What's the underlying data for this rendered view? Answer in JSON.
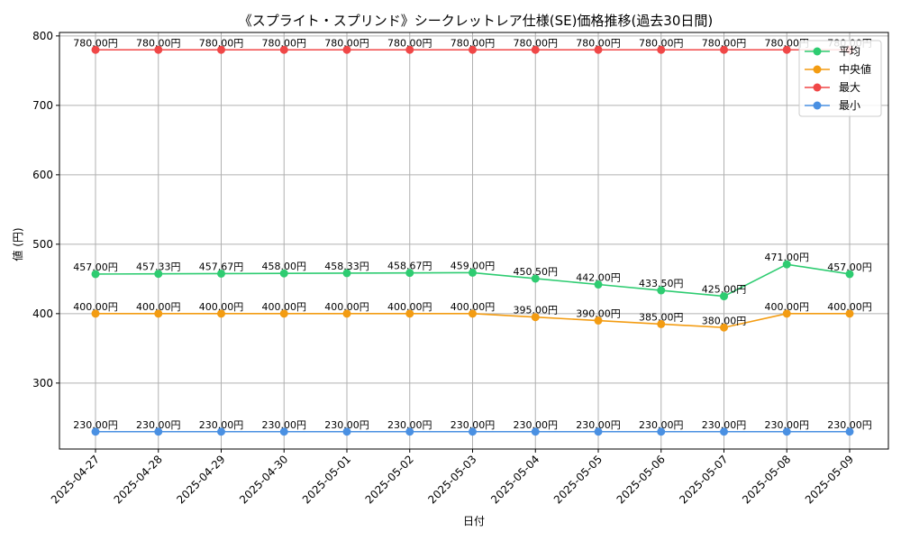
{
  "chart_data": {
    "type": "line",
    "title": "《スプライト・スプリンド》シークレットレア仕様(SE)価格推移(過去30日間)",
    "xlabel": "日付",
    "ylabel": "値 (円)",
    "ylim": [
      205,
      805
    ],
    "yticks": [
      300,
      400,
      500,
      600,
      700,
      800
    ],
    "grid": true,
    "legend_position": "top-right",
    "label_suffix": "円",
    "categories": [
      "2025-04-27",
      "2025-04-28",
      "2025-04-29",
      "2025-04-30",
      "2025-05-01",
      "2025-05-02",
      "2025-05-03",
      "2025-05-04",
      "2025-05-05",
      "2025-05-06",
      "2025-05-07",
      "2025-05-08",
      "2025-05-09"
    ],
    "series": [
      {
        "name": "平均",
        "color": "#2ecc71",
        "values": [
          457.0,
          457.33,
          457.67,
          458.0,
          458.33,
          458.67,
          459.0,
          450.5,
          442.0,
          433.5,
          425.0,
          471.0,
          457.0
        ]
      },
      {
        "name": "中央値",
        "color": "#f39c12",
        "values": [
          400,
          400,
          400,
          400,
          400,
          400,
          400,
          395,
          390,
          385,
          380,
          400,
          400
        ]
      },
      {
        "name": "最大",
        "color": "#f04747",
        "values": [
          780,
          780,
          780,
          780,
          780,
          780,
          780,
          780,
          780,
          780,
          780,
          780,
          780
        ]
      },
      {
        "name": "最小",
        "color": "#4a90e2",
        "values": [
          230,
          230,
          230,
          230,
          230,
          230,
          230,
          230,
          230,
          230,
          230,
          230,
          230
        ]
      }
    ]
  }
}
